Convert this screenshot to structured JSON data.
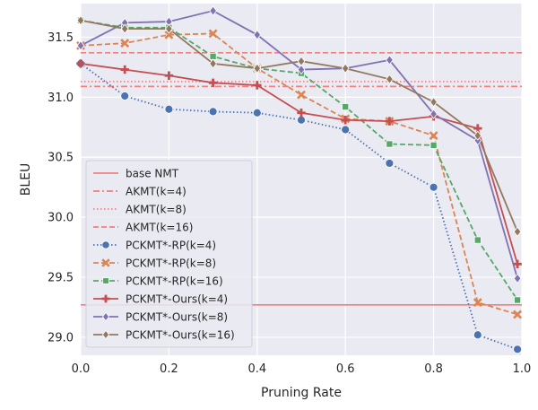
{
  "chart_data": {
    "type": "line",
    "xlabel": "Pruning Rate",
    "ylabel": "BLEU",
    "xlim": [
      0.0,
      1.0
    ],
    "ylim": [
      28.85,
      31.78
    ],
    "x_ticks": [
      0.0,
      0.2,
      0.4,
      0.6,
      0.8,
      1.0
    ],
    "x_tick_labels": [
      "0.0",
      "0.2",
      "0.4",
      "0.6",
      "0.8",
      "1.0"
    ],
    "y_ticks": [
      29.0,
      29.5,
      30.0,
      30.5,
      31.0,
      31.5
    ],
    "y_tick_labels": [
      "29.0",
      "29.5",
      "30.0",
      "30.5",
      "31.0",
      "31.5"
    ],
    "grid": true,
    "legend_position": "bottom-left",
    "x": [
      0.0,
      0.1,
      0.2,
      0.3,
      0.4,
      0.5,
      0.6,
      0.7,
      0.8,
      0.9,
      0.99
    ],
    "reference_lines": [
      {
        "name": "base NMT",
        "value": 29.27,
        "color": "#f08080",
        "style": "solid"
      },
      {
        "name": "AKMT(k=4)",
        "value": 31.09,
        "color": "#f08080",
        "style": "dashdot"
      },
      {
        "name": "AKMT(k=8)",
        "value": 31.13,
        "color": "#f08080",
        "style": "dotted"
      },
      {
        "name": "AKMT(k=16)",
        "value": 31.37,
        "color": "#f08080",
        "style": "dashed"
      }
    ],
    "series": [
      {
        "name": "PCKMT*-RP(k=4)",
        "color": "#4c72b0",
        "style": "dotted",
        "marker": "circle",
        "values": [
          31.28,
          31.01,
          30.9,
          30.88,
          30.87,
          30.81,
          30.73,
          30.45,
          30.25,
          29.02,
          28.9
        ]
      },
      {
        "name": "PCKMT*-RP(k=8)",
        "color": "#dd8452",
        "style": "dashed",
        "marker": "x",
        "values": [
          31.43,
          31.45,
          31.52,
          31.53,
          31.24,
          31.02,
          30.82,
          30.8,
          30.68,
          29.29,
          29.19
        ]
      },
      {
        "name": "PCKMT*-RP(k=16)",
        "color": "#55a868",
        "style": "dashed",
        "marker": "square",
        "values": [
          31.64,
          31.58,
          31.58,
          31.34,
          31.24,
          31.2,
          30.92,
          30.61,
          30.6,
          29.81,
          29.31
        ]
      },
      {
        "name": "PCKMT*-Ours(k=4)",
        "color": "#c44e52",
        "style": "solid",
        "marker": "plus",
        "values": [
          31.28,
          31.23,
          31.18,
          31.12,
          31.1,
          30.87,
          30.81,
          30.8,
          30.84,
          30.74,
          29.61
        ]
      },
      {
        "name": "PCKMT*-Ours(k=8)",
        "color": "#8172b3",
        "style": "solid",
        "marker": "diamond",
        "values": [
          31.43,
          31.62,
          31.63,
          31.72,
          31.52,
          31.23,
          31.24,
          31.31,
          30.86,
          30.64,
          29.49
        ]
      },
      {
        "name": "PCKMT*-Ours(k=16)",
        "color": "#937860",
        "style": "solid",
        "marker": "diamond",
        "values": [
          31.64,
          31.57,
          31.57,
          31.28,
          31.24,
          31.3,
          31.24,
          31.15,
          30.96,
          30.68,
          29.88
        ]
      }
    ]
  }
}
